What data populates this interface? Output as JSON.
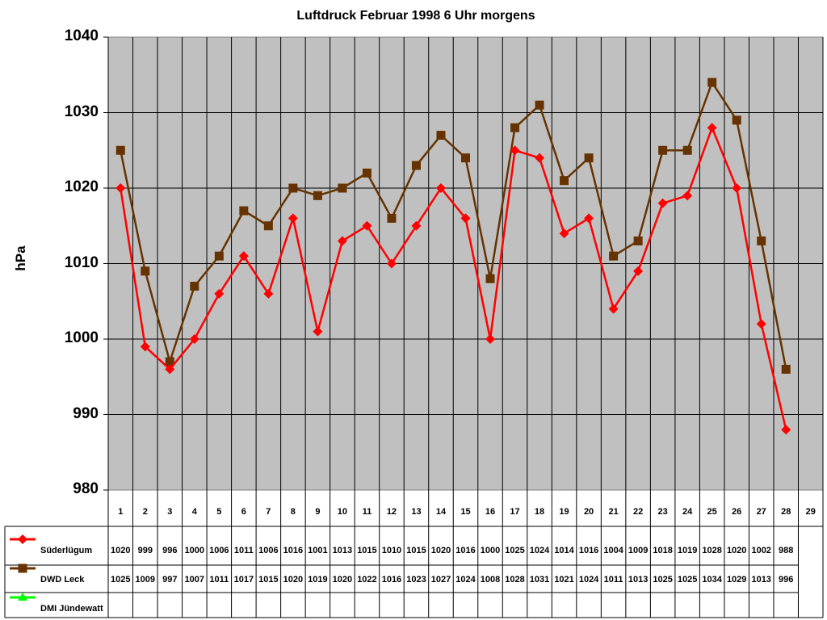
{
  "chart_data": {
    "type": "line",
    "title": "Luftdruck Februar 1998 6 Uhr morgens",
    "xlabel": "",
    "ylabel": "hPa",
    "ylim": [
      980,
      1040
    ],
    "yticks": [
      980,
      990,
      1000,
      1010,
      1020,
      1030,
      1040
    ],
    "grid": true,
    "legend_position": "data-table-left",
    "categories": [
      "1",
      "2",
      "3",
      "4",
      "5",
      "6",
      "7",
      "8",
      "9",
      "10",
      "11",
      "12",
      "13",
      "14",
      "15",
      "16",
      "17",
      "18",
      "19",
      "20",
      "21",
      "22",
      "23",
      "24",
      "25",
      "26",
      "27",
      "28",
      "29"
    ],
    "series": [
      {
        "name": "Süderlügum",
        "color": "#ff0000",
        "marker": "diamond",
        "values": [
          1020,
          999,
          996,
          1000,
          1006,
          1011,
          1006,
          1016,
          1001,
          1013,
          1015,
          1010,
          1015,
          1020,
          1016,
          1000,
          1025,
          1024,
          1014,
          1016,
          1004,
          1009,
          1018,
          1019,
          1028,
          1020,
          1002,
          988,
          null
        ]
      },
      {
        "name": "DWD Leck",
        "color": "#663300",
        "marker": "square",
        "values": [
          1025,
          1009,
          997,
          1007,
          1011,
          1017,
          1015,
          1020,
          1019,
          1020,
          1022,
          1016,
          1023,
          1027,
          1024,
          1008,
          1028,
          1031,
          1021,
          1024,
          1011,
          1013,
          1025,
          1025,
          1034,
          1029,
          1013,
          996,
          null
        ]
      },
      {
        "name": "DMI Jündewatt",
        "color": "#00ff00",
        "marker": "triangle",
        "values": [
          null,
          null,
          null,
          null,
          null,
          null,
          null,
          null,
          null,
          null,
          null,
          null,
          null,
          null,
          null,
          null,
          null,
          null,
          null,
          null,
          null,
          null,
          null,
          null,
          null,
          null,
          null,
          null,
          null
        ]
      }
    ]
  }
}
